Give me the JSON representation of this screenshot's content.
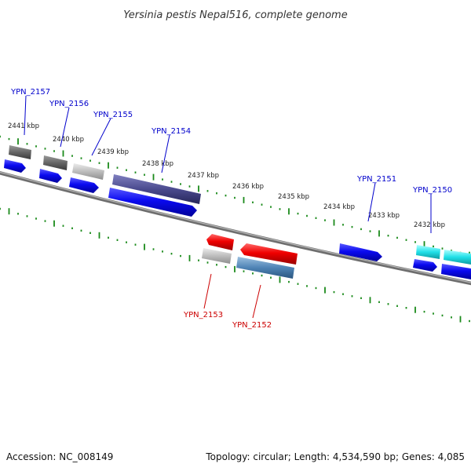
{
  "title": "Yersinia pestis Nepal516, complete genome",
  "footer": {
    "accession": "Accession: NC_008149",
    "stats": "Topology: circular; Length: 4,534,590 bp; Genes: 4,085"
  },
  "ruler_labels": [
    "2441 kbp",
    "2440 kbp",
    "2439 kbp",
    "2438 kbp",
    "2437 kbp",
    "2436 kbp",
    "2435 kbp",
    "2434 kbp",
    "2433 kbp",
    "2432 kbp"
  ],
  "genes_forward": [
    {
      "name": "YPN_2157",
      "color": "#0000cc"
    },
    {
      "name": "YPN_2156",
      "color": "#0000cc"
    },
    {
      "name": "YPN_2155",
      "color": "#0000cc"
    },
    {
      "name": "YPN_2154",
      "color": "#0000cc"
    },
    {
      "name": "YPN_2151",
      "color": "#0000cc"
    },
    {
      "name": "YPN_2150",
      "color": "#0000cc"
    }
  ],
  "genes_reverse": [
    {
      "name": "YPN_2153",
      "color": "#cc0000"
    },
    {
      "name": "YPN_2152",
      "color": "#cc0000"
    }
  ],
  "colors": {
    "backbone": "#7a7a7a",
    "tick": "#1a8a1a",
    "cds_forward": "#0000ee",
    "cds_reverse": "#ee0000",
    "gene_dark_gray": "#666666",
    "gene_light_gray": "#bdbdbd",
    "gene_slate": "#4a4a8e",
    "gene_steel": "#4f84b5",
    "gene_cyan": "#20e0e8"
  }
}
